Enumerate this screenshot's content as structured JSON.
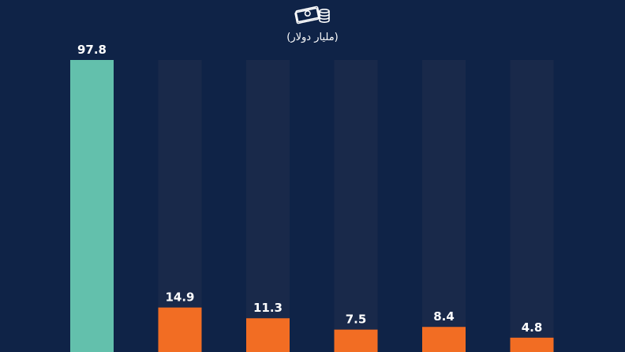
{
  "colors": {
    "background": "#0f2347",
    "track": "#19294a",
    "highlight": "#63c0ac",
    "bar": "#f26d23",
    "text": "#ffffff"
  },
  "header": {
    "icon": "money-stack-icon",
    "unit_label": "(مليار دولار)"
  },
  "chart_data": {
    "type": "bar",
    "categories": [
      "",
      "",
      "",
      "",
      "",
      ""
    ],
    "values": [
      97.8,
      14.9,
      11.3,
      7.5,
      8.4,
      4.8
    ],
    "value_labels": [
      "97.8",
      "14.9",
      "11.3",
      "7.5",
      "8.4",
      "4.8"
    ],
    "highlight_index": 0,
    "ylabel": "(مليار دولار)",
    "grid": false,
    "legend": "none"
  }
}
